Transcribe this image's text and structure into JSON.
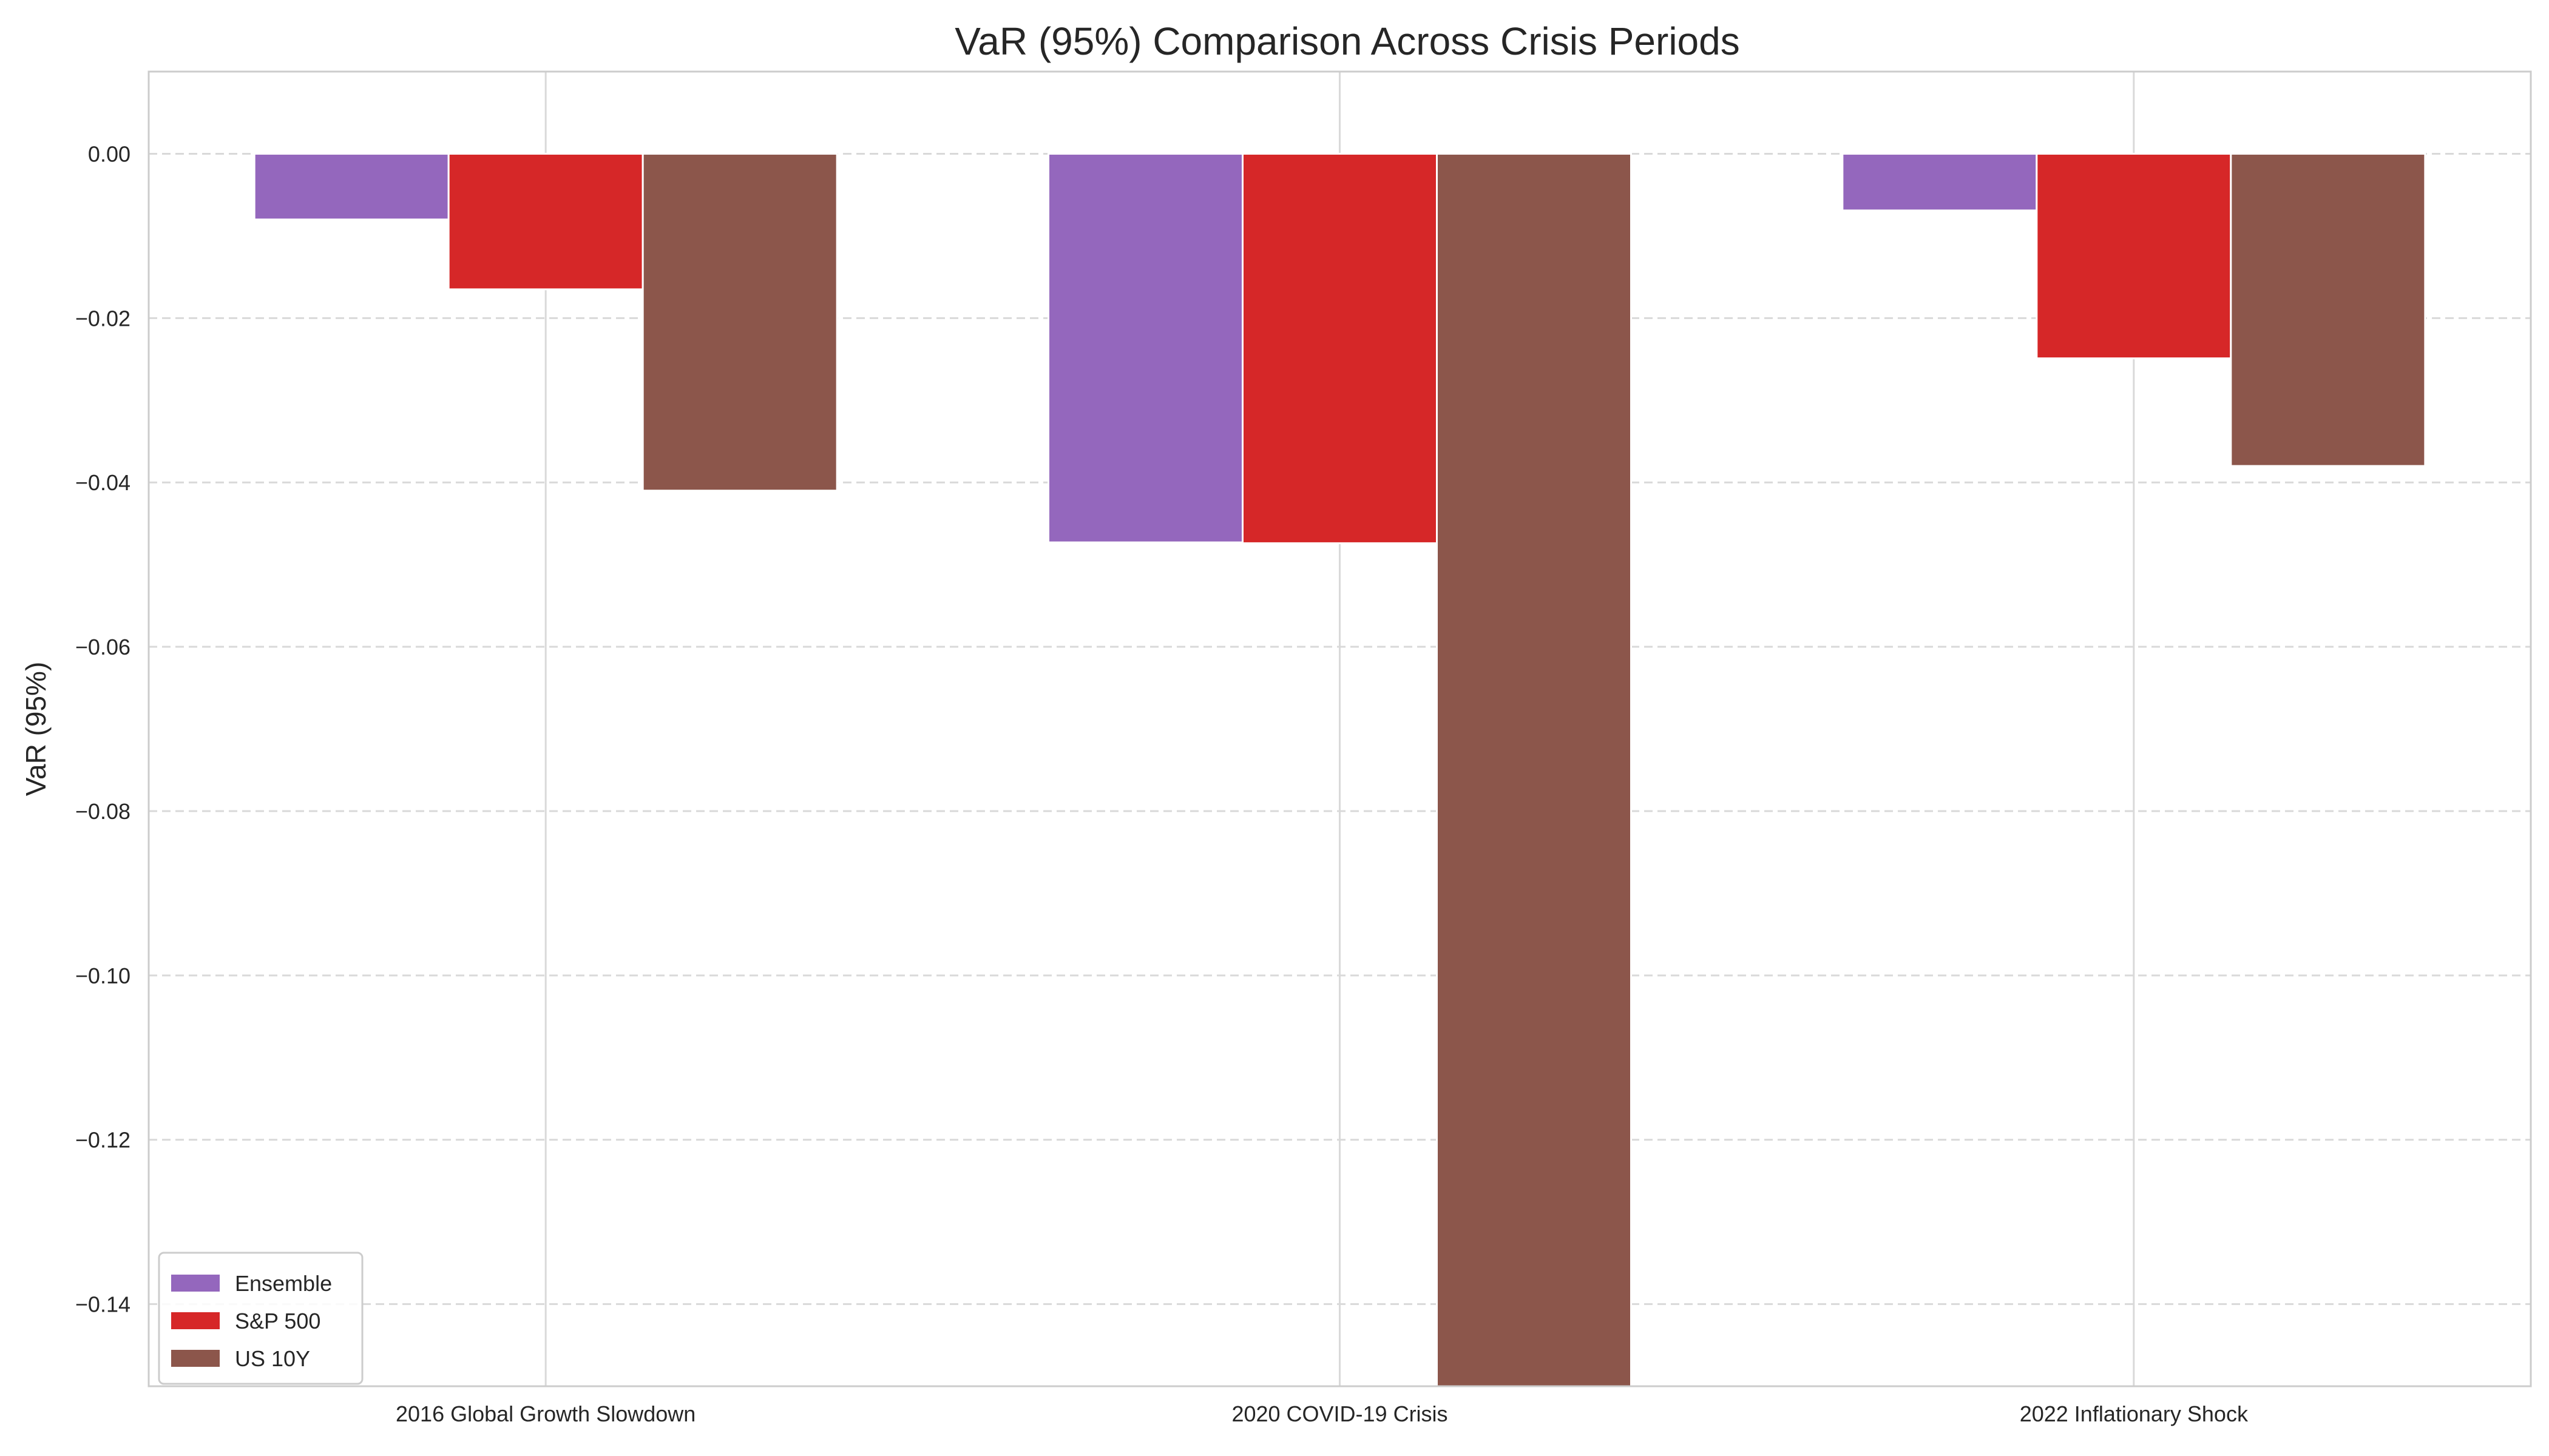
{
  "chart_data": {
    "type": "bar",
    "title": "VaR (95%) Comparison Across Crisis Periods",
    "xlabel": "",
    "ylabel": "VaR (95%)",
    "categories": [
      "2016 Global Growth Slowdown",
      "2020 COVID-19 Crisis",
      "2022 Inflationary Shock"
    ],
    "series": [
      {
        "name": "Ensemble",
        "color": "#9467bd",
        "values": [
          -0.008,
          -0.0473,
          -0.0069
        ]
      },
      {
        "name": "S&P 500",
        "color": "#d62728",
        "values": [
          -0.0165,
          -0.0474,
          -0.0249
        ]
      },
      {
        "name": "US 10Y",
        "color": "#8c564b",
        "values": [
          -0.041,
          -0.15,
          -0.038
        ]
      }
    ],
    "ylim": [
      -0.15,
      0.01
    ],
    "yticks": [
      0.0,
      -0.02,
      -0.04,
      -0.06,
      -0.08,
      -0.1,
      -0.12,
      -0.14
    ],
    "ytick_labels": [
      "0.00",
      "−0.02",
      "−0.04",
      "−0.06",
      "−0.08",
      "−0.10",
      "−0.12",
      "−0.14"
    ],
    "grid": {
      "y": "dashed",
      "x": "solid"
    },
    "legend_position": "lower-left"
  }
}
